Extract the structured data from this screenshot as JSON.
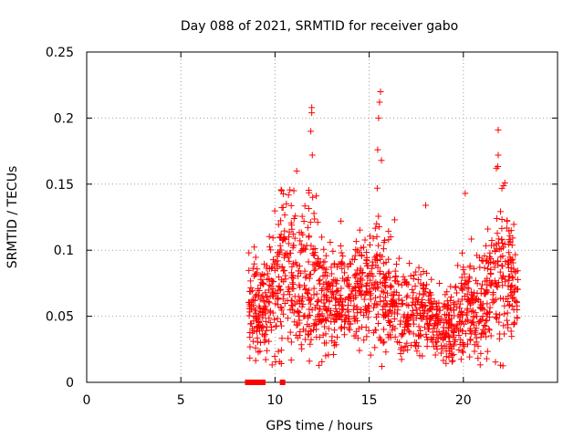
{
  "chart_data": {
    "type": "scatter",
    "title": "Day 088 of 2021, SRMTID for receiver gabo",
    "xlabel": "GPS time / hours",
    "ylabel": "SRMTID / TECUs",
    "xlim": [
      0,
      25
    ],
    "ylim": [
      0,
      0.25
    ],
    "xticks": [
      0,
      5,
      10,
      15,
      20
    ],
    "yticks": [
      0,
      0.05,
      0.1,
      0.15,
      0.2,
      0.25
    ],
    "xtick_labels": [
      "0",
      "5",
      "10",
      "15",
      "20"
    ],
    "ytick_labels": [
      "0",
      "0.05",
      "0.1",
      "0.15",
      "0.2",
      "0.25"
    ],
    "grid": true,
    "marker": "+",
    "color": "#ff0000",
    "zero_marker": "square",
    "zero_times": [
      8.55,
      8.75,
      8.85,
      8.95,
      9.05,
      9.15,
      9.35,
      10.4
    ],
    "envelope_hours": [
      8.6,
      9.0,
      9.5,
      10.0,
      10.5,
      11.0,
      11.5,
      12.0,
      12.5,
      13.0,
      13.5,
      14.0,
      14.5,
      15.0,
      15.5,
      16.0,
      16.5,
      17.0,
      17.5,
      18.0,
      18.5,
      19.0,
      19.5,
      20.0,
      20.5,
      21.0,
      21.5,
      22.0,
      22.5,
      22.9
    ],
    "envelope_mean": [
      0.06,
      0.055,
      0.055,
      0.07,
      0.085,
      0.075,
      0.075,
      0.08,
      0.06,
      0.06,
      0.06,
      0.065,
      0.07,
      0.07,
      0.075,
      0.065,
      0.05,
      0.055,
      0.05,
      0.055,
      0.045,
      0.04,
      0.04,
      0.06,
      0.06,
      0.06,
      0.07,
      0.09,
      0.075,
      0.065
    ],
    "envelope_spread": [
      0.025,
      0.025,
      0.025,
      0.035,
      0.04,
      0.03,
      0.035,
      0.04,
      0.025,
      0.025,
      0.025,
      0.02,
      0.025,
      0.025,
      0.04,
      0.025,
      0.02,
      0.02,
      0.02,
      0.02,
      0.018,
      0.018,
      0.02,
      0.025,
      0.025,
      0.025,
      0.03,
      0.045,
      0.03,
      0.02
    ],
    "peaks": [
      {
        "x": 11.95,
        "y": 0.208
      },
      {
        "x": 11.95,
        "y": 0.204
      },
      {
        "x": 11.9,
        "y": 0.19
      },
      {
        "x": 11.98,
        "y": 0.172
      },
      {
        "x": 15.6,
        "y": 0.22
      },
      {
        "x": 15.55,
        "y": 0.212
      },
      {
        "x": 15.5,
        "y": 0.2
      },
      {
        "x": 15.45,
        "y": 0.176
      },
      {
        "x": 15.65,
        "y": 0.168
      },
      {
        "x": 21.85,
        "y": 0.191
      },
      {
        "x": 21.85,
        "y": 0.172
      },
      {
        "x": 21.75,
        "y": 0.162
      },
      {
        "x": 22.2,
        "y": 0.151
      },
      {
        "x": 11.15,
        "y": 0.16
      },
      {
        "x": 10.35,
        "y": 0.145
      },
      {
        "x": 20.1,
        "y": 0.143
      },
      {
        "x": 18.0,
        "y": 0.134
      },
      {
        "x": 13.5,
        "y": 0.122
      },
      {
        "x": 16.35,
        "y": 0.123
      },
      {
        "x": 12.0,
        "y": 0.14
      },
      {
        "x": 11.0,
        "y": 0.145
      }
    ]
  }
}
